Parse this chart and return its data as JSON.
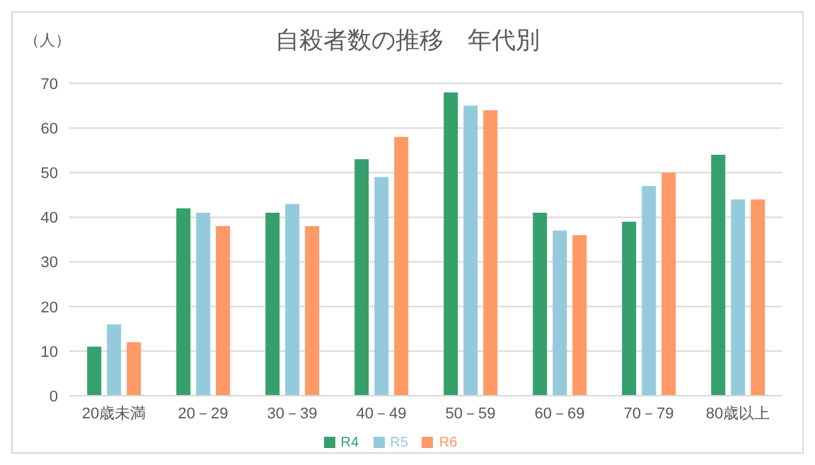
{
  "chart_data": {
    "type": "bar",
    "title": "自殺者数の推移　年代別",
    "ylabel": "（人）",
    "categories": [
      "20歳未満",
      "20－29",
      "30－39",
      "40－49",
      "50－59",
      "60－69",
      "70－79",
      "80歳以上"
    ],
    "series": [
      {
        "name": "R4",
        "color": "#35a06c",
        "values": [
          11,
          42,
          41,
          53,
          68,
          41,
          39,
          54
        ]
      },
      {
        "name": "R5",
        "color": "#94cbdc",
        "values": [
          16,
          41,
          43,
          49,
          65,
          37,
          47,
          44
        ]
      },
      {
        "name": "R6",
        "color": "#ff9966",
        "values": [
          12,
          38,
          38,
          58,
          64,
          36,
          50,
          44
        ]
      }
    ],
    "ylim": [
      0,
      70
    ],
    "yticks": [
      0,
      10,
      20,
      30,
      40,
      50,
      60,
      70
    ],
    "grid": "y",
    "legend": "bottom"
  }
}
